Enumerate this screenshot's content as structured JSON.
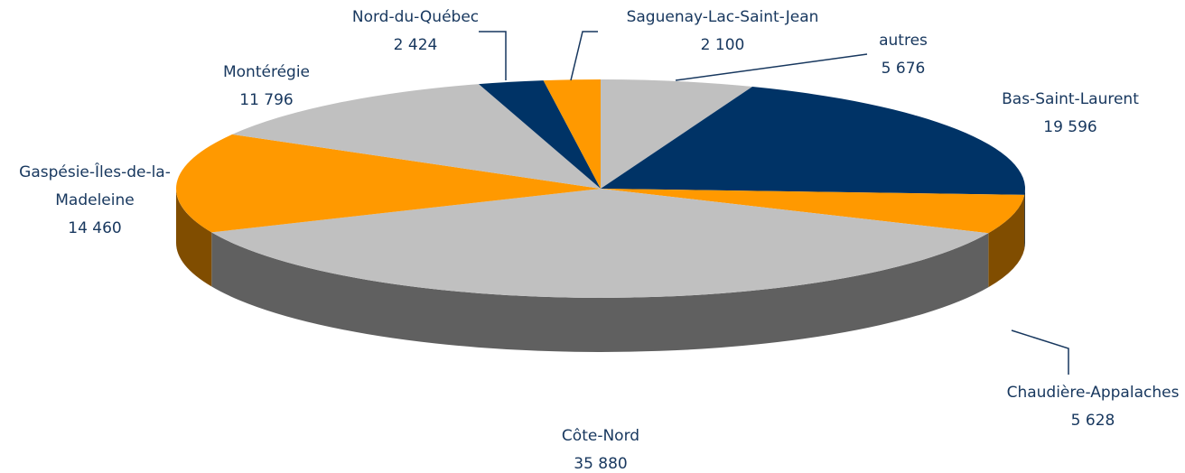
{
  "chart_data": {
    "type": "pie3d",
    "categories": [
      "autres",
      "Bas-Saint-Laurent",
      "Chaudière-Appalaches",
      "Côte-Nord",
      "Gaspésie-Îles-de-la-Madeleine",
      "Montérégie",
      "Nord-du-Québec",
      "Saguenay-Lac-Saint-Jean"
    ],
    "values": [
      5676,
      19596,
      5628,
      35880,
      14460,
      11796,
      2424,
      2100
    ],
    "value_labels": [
      "5 676",
      "19 596",
      "5 628",
      "35 880",
      "14 460",
      "11 796",
      "2 424",
      "2 100"
    ],
    "colors": [
      "#c0c0c0",
      "#003366",
      "#ff9900",
      "#c0c0c0",
      "#ff9900",
      "#c0c0c0",
      "#003366",
      "#ff9900"
    ]
  }
}
